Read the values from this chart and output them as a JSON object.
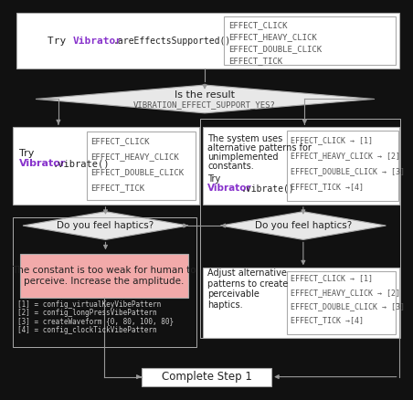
{
  "bg_color": "#111111",
  "box_bg": "#ffffff",
  "box_border": "#aaaaaa",
  "diamond_bg": "#e8e8e8",
  "pink_bg": "#f2aaaa",
  "text_color": "#222222",
  "mono_color": "#555555",
  "purple_color": "#8833cc",
  "arrow_color": "#999999",
  "title": "Complete Step 1",
  "effects_list": [
    "EFFECT_CLICK",
    "EFFECT_HEAVY_CLICK",
    "EFFECT_DOUBLE_CLICK",
    "EFFECT_TICK"
  ],
  "effects_list2": [
    "EFFECT_CLICK → [1]",
    "EFFECT_HEAVY_CLICK → [2]",
    "EFFECT_DOUBLE_CLICK → [3]",
    "EFFECT_TICK →[4]"
  ],
  "effects_list3": [
    "EFFECT_CLICK → [1]",
    "EFFECT_HEAVY_CLICK → [2]",
    "EFFECT_DOUBLE_CLICK → [3]",
    "EFFECT_TICK →[4]"
  ],
  "pink_text": "The constant is too weak for human to\nperceive. Increase the amplitude.",
  "footnotes": [
    "[1] = config_virtualKeyVibePattern",
    "[2] = config_longPressVibePattern",
    "[3] = createWaveform {0, 80, 100, 80}",
    "[4] = config_clockTickVibePattern"
  ],
  "adjust_text": "Adjust alternative\npatterns to create\nperceivable\nhaptics."
}
